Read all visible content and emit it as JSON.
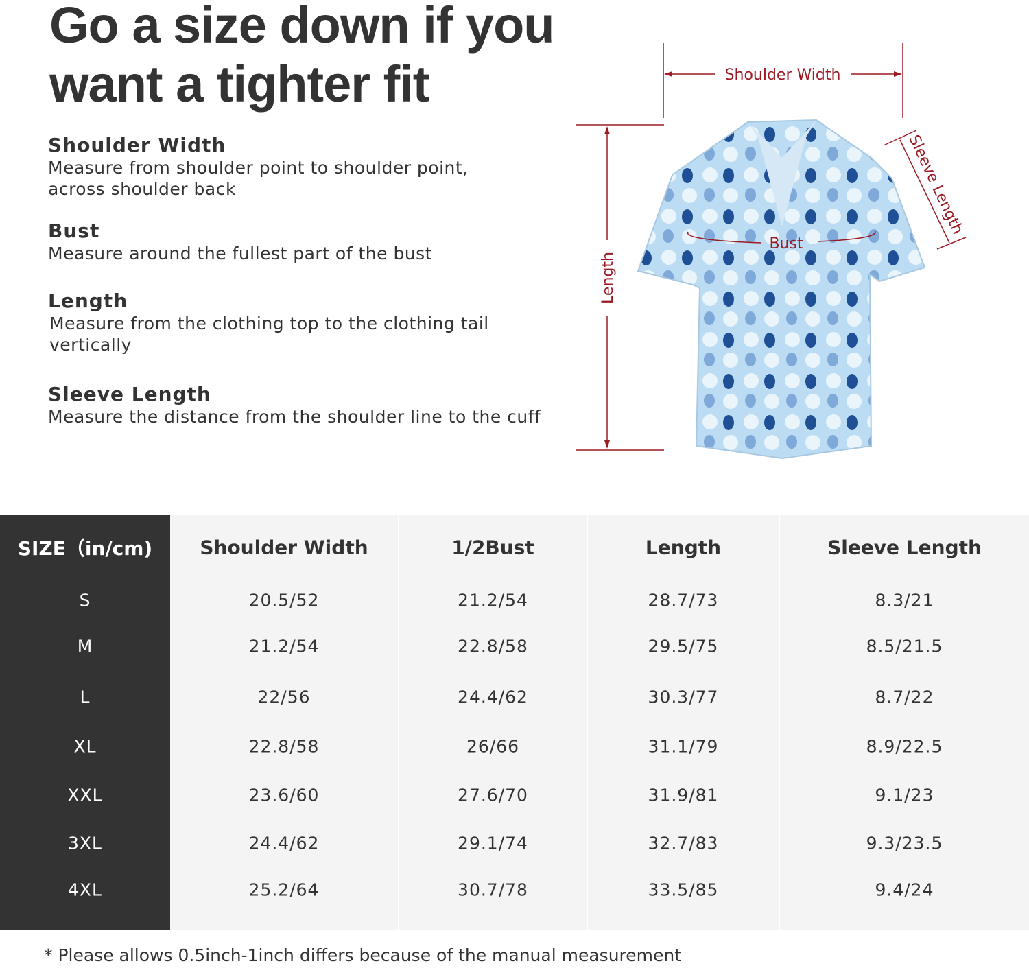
{
  "title": {
    "line1": "Go a size down if you",
    "line2": "want a tighter fit"
  },
  "sections": [
    {
      "heading": "Shoulder Width",
      "text": "Measure from shoulder point to shoulder point,\nacross shoulder back"
    },
    {
      "heading": "Bust",
      "text": "Measure around the fullest part of the bust"
    },
    {
      "heading": "Length",
      "text": "Measure from the clothing top to the clothing tail\nvertically"
    },
    {
      "heading": "Sleeve Length",
      "text": "Measure the distance from the shoulder line to the cuff"
    }
  ],
  "diagram": {
    "shoulder_width": "Shoulder Width",
    "bust": "Bust",
    "length": "Length",
    "sleeve_length": "Sleeve Length",
    "accent": "#9b1b24",
    "shirt_color": "#bcdcf3"
  },
  "table": {
    "headers": [
      "SIZE（in/cm)",
      "Shoulder Width",
      "1/2Bust",
      "Length",
      "Sleeve Length"
    ],
    "rows": [
      [
        "S",
        "20.5/52",
        "21.2/54",
        "28.7/73",
        "8.3/21"
      ],
      [
        "M",
        "21.2/54",
        "22.8/58",
        "29.5/75",
        "8.5/21.5"
      ],
      [
        "L",
        "22/56",
        "24.4/62",
        "30.3/77",
        "8.7/22"
      ],
      [
        "XL",
        "22.8/58",
        "26/66",
        "31.1/79",
        "8.9/22.5"
      ],
      [
        "XXL",
        "23.6/60",
        "27.6/70",
        "31.9/81",
        "9.1/23"
      ],
      [
        "3XL",
        "24.4/62",
        "29.1/74",
        "32.7/83",
        "9.3/23.5"
      ],
      [
        "4XL",
        "25.2/64",
        "30.7/78",
        "33.5/85",
        "9.4/24"
      ]
    ]
  },
  "footnote": "* Please allows 0.5inch-1inch differs because of the  manual measurement"
}
